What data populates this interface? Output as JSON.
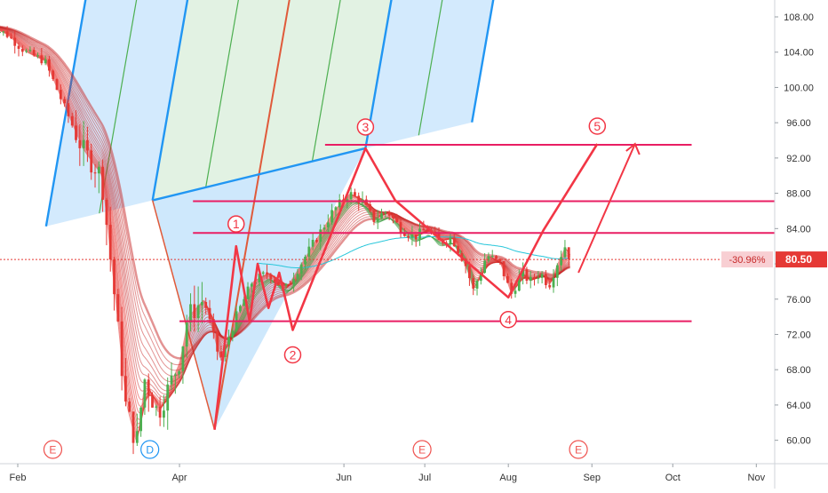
{
  "chart_data": {
    "type": "candlestick",
    "title": "",
    "x_axis": {
      "tick_labels": [
        "Feb",
        "Apr",
        "Jun",
        "Jul",
        "Aug",
        "Sep",
        "Oct",
        "Nov"
      ],
      "tick_dates": [
        "2020-02-01",
        "2020-04-01",
        "2020-06-01",
        "2020-07-01",
        "2020-08-01",
        "2020-09-01",
        "2020-10-01",
        "2020-11-01"
      ]
    },
    "y_axis": {
      "range": [
        57.5,
        110
      ],
      "tick_values": [
        60,
        64,
        68,
        72,
        76,
        80,
        84,
        88,
        92,
        96,
        100,
        104,
        108
      ],
      "tick_labels": [
        "60.00",
        "64.00",
        "68.00",
        "72.00",
        "76.00",
        "80.00",
        "84.00",
        "88.00",
        "92.00",
        "96.00",
        "100.00",
        "104.00",
        "108.00"
      ],
      "position": "right"
    },
    "last_price": {
      "change_label": "-30.96%",
      "price_label": "80.50",
      "value": 80.5
    },
    "price_path": [
      [
        "2020-01-21",
        107
      ],
      [
        "2020-01-28",
        106
      ],
      [
        "2020-02-04",
        104
      ],
      [
        "2020-02-11",
        103
      ],
      [
        "2020-02-18",
        98
      ],
      [
        "2020-02-25",
        93
      ],
      [
        "2020-03-03",
        90
      ],
      [
        "2020-03-08",
        76
      ],
      [
        "2020-03-12",
        64
      ],
      [
        "2020-03-16",
        59.5
      ],
      [
        "2020-03-19",
        67
      ],
      [
        "2020-03-24",
        63
      ],
      [
        "2020-03-28",
        66
      ],
      [
        "2020-04-01",
        69
      ],
      [
        "2020-04-04",
        74
      ],
      [
        "2020-04-10",
        76
      ],
      [
        "2020-04-16",
        69
      ],
      [
        "2020-04-22",
        74
      ],
      [
        "2020-04-28",
        78
      ],
      [
        "2020-05-04",
        79
      ],
      [
        "2020-05-10",
        77
      ],
      [
        "2020-05-16",
        80
      ],
      [
        "2020-05-22",
        83
      ],
      [
        "2020-05-28",
        86
      ],
      [
        "2020-06-03",
        88
      ],
      [
        "2020-06-08",
        87
      ],
      [
        "2020-06-12",
        85
      ],
      [
        "2020-06-17",
        86
      ],
      [
        "2020-06-22",
        84
      ],
      [
        "2020-06-27",
        83
      ],
      [
        "2020-07-02",
        84
      ],
      [
        "2020-07-06",
        82.5
      ],
      [
        "2020-07-11",
        83
      ],
      [
        "2020-07-16",
        80
      ],
      [
        "2020-07-19",
        77
      ],
      [
        "2020-07-24",
        81
      ],
      [
        "2020-07-29",
        80
      ],
      [
        "2020-08-02",
        76.5
      ],
      [
        "2020-08-06",
        79
      ],
      [
        "2020-08-09",
        78
      ],
      [
        "2020-08-13",
        79
      ],
      [
        "2020-08-16",
        77.5
      ],
      [
        "2020-08-19",
        80
      ],
      [
        "2020-08-22",
        82
      ],
      [
        "2020-08-24",
        80.5
      ]
    ],
    "wave_points": [
      {
        "label": "1",
        "date": "2020-04-22",
        "value": 82
      },
      {
        "label": "2",
        "date": "2020-05-13",
        "value": 72.5
      },
      {
        "label": "3",
        "date": "2020-06-09",
        "value": 93.1
      },
      {
        "label": "4",
        "date": "2020-08-01",
        "value": 76.2
      },
      {
        "label": "5",
        "date": "2020-09-03",
        "value": 93.6
      }
    ],
    "event_markers": [
      {
        "label": "E",
        "date": "2020-02-14"
      },
      {
        "label": "D",
        "date": "2020-03-21"
      },
      {
        "label": "E",
        "date": "2020-06-30"
      },
      {
        "label": "E",
        "date": "2020-08-27"
      }
    ],
    "horizontal_levels": [
      93.5,
      87.1,
      83.5,
      73.5
    ],
    "grid": false,
    "legend": "none",
    "colors": {
      "up": "#4caf50",
      "down": "#e53935",
      "wave": "#f23645",
      "level": "#e91e63",
      "fork_blue": "#2196f3",
      "fork_green": "#4caf50",
      "median": "#e05a3a",
      "price_tag": "#e53935",
      "change_tag": "#f8cfd3",
      "ma_slow": "#26c6da"
    }
  }
}
